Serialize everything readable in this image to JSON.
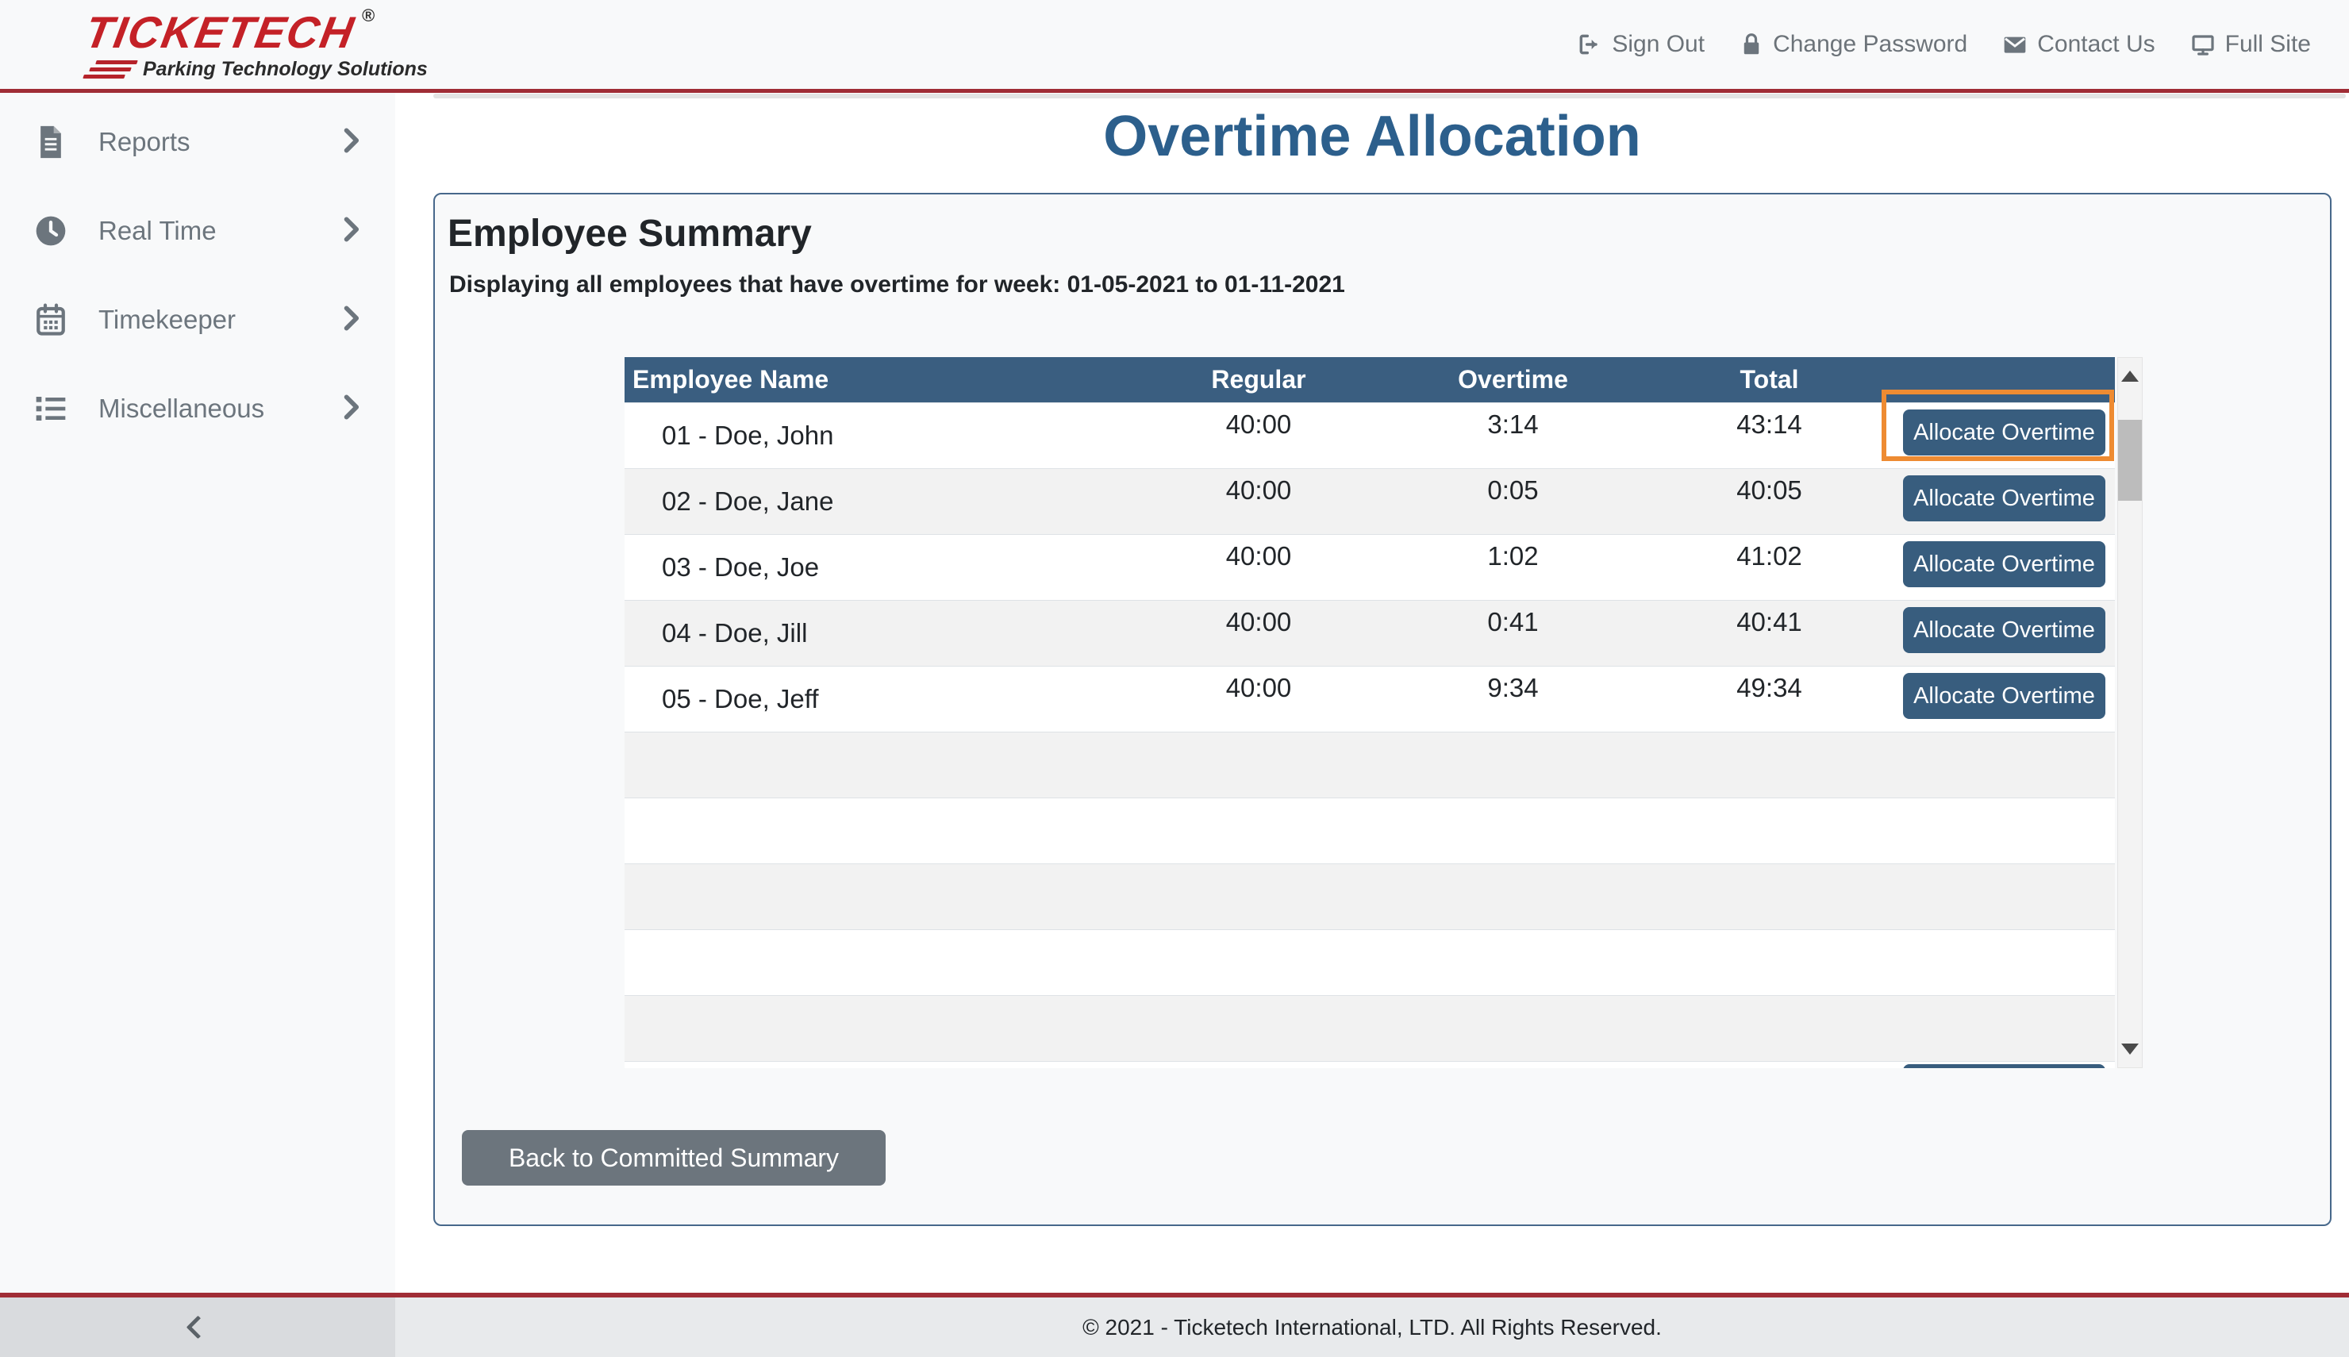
{
  "brand": {
    "wordmark": "TICKETECH",
    "registered": "®",
    "tagline": "Parking Technology Solutions"
  },
  "top_nav": {
    "items": [
      {
        "icon": "sign-out-icon",
        "label": "Sign Out"
      },
      {
        "icon": "lock-icon",
        "label": "Change Password"
      },
      {
        "icon": "envelope-icon",
        "label": "Contact Us"
      },
      {
        "icon": "monitor-icon",
        "label": "Full Site"
      }
    ]
  },
  "sidebar": {
    "items": [
      {
        "icon": "document-icon",
        "label": "Reports"
      },
      {
        "icon": "clock-icon",
        "label": "Real Time"
      },
      {
        "icon": "calendar-icon",
        "label": "Timekeeper"
      },
      {
        "icon": "list-icon",
        "label": "Miscellaneous"
      }
    ]
  },
  "page": {
    "title": "Overtime Allocation"
  },
  "panel": {
    "heading": "Employee Summary",
    "subtitle": "Displaying all employees that have overtime for week: 01-05-2021 to 01-11-2021"
  },
  "table": {
    "columns": [
      "Employee Name",
      "Regular",
      "Overtime",
      "Total"
    ],
    "action_label": "Allocate Overtime",
    "rows": [
      {
        "name": "01 - Doe, John",
        "regular": "40:00",
        "overtime": "3:14",
        "total": "43:14",
        "highlighted": true
      },
      {
        "name": "02 - Doe, Jane",
        "regular": "40:00",
        "overtime": "0:05",
        "total": "40:05",
        "highlighted": false
      },
      {
        "name": "03 - Doe, Joe",
        "regular": "40:00",
        "overtime": "1:02",
        "total": "41:02",
        "highlighted": false
      },
      {
        "name": "04 - Doe, Jill",
        "regular": "40:00",
        "overtime": "0:41",
        "total": "40:41",
        "highlighted": false
      },
      {
        "name": "05 - Doe, Jeff",
        "regular": "40:00",
        "overtime": "9:34",
        "total": "49:34",
        "highlighted": false
      }
    ],
    "empty_rows": 5,
    "partial_row_visible": true
  },
  "actions": {
    "back_label": "Back to Committed Summary"
  },
  "footer": {
    "copyright": "© 2021 - Ticketech International, LTD. All Rights Reserved."
  },
  "colors": {
    "header_blue": "#3a5e80",
    "title_blue": "#2c5f8c",
    "accent_red": "#a02d36",
    "logo_red": "#c42127",
    "highlight_orange": "#ee8b32",
    "back_gray": "#6c757d",
    "stripe_gray": "#f2f2f2"
  }
}
